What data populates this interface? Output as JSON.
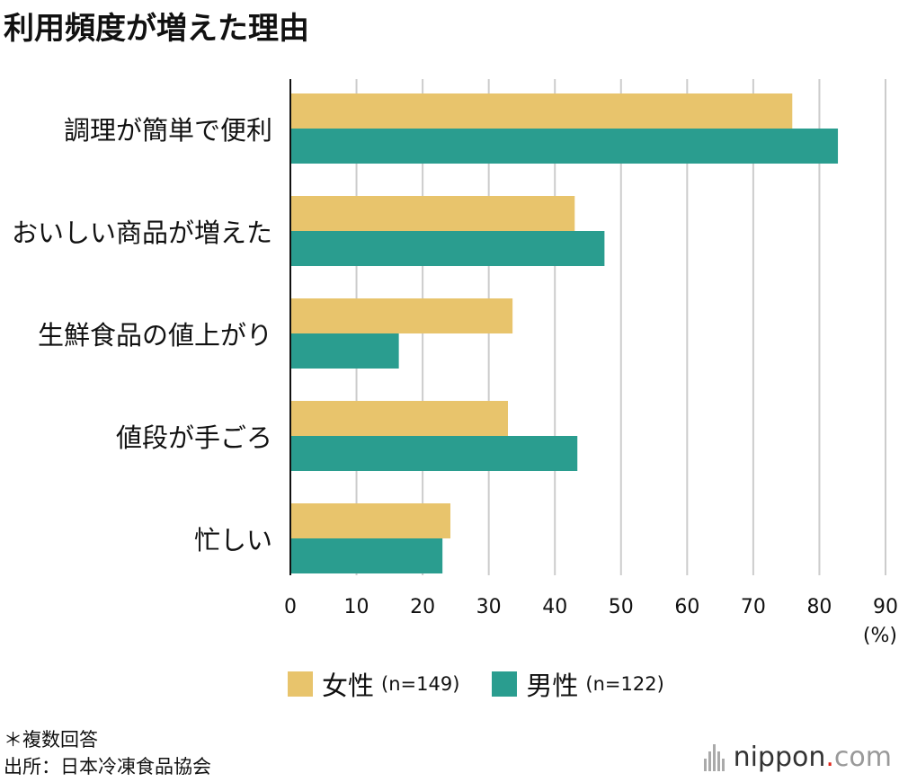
{
  "title": "利用頻度が増えた理由",
  "chart_data": {
    "type": "bar",
    "orientation": "horizontal",
    "title": "利用頻度が増えた理由",
    "categories": [
      "調理が簡単で便利",
      "おいしい商品が増えた",
      "生鮮食品の値上がり",
      "値段が手ごろ",
      "忙しい"
    ],
    "series": [
      {
        "name": "女性",
        "n_label": "(n=149)",
        "color": "#e8c46c",
        "values": [
          75.9,
          43.0,
          33.6,
          32.9,
          24.2
        ]
      },
      {
        "name": "男性",
        "n_label": "(n=122)",
        "color": "#2a9d8f",
        "values": [
          82.8,
          47.5,
          16.4,
          43.4,
          23.0
        ]
      }
    ],
    "xticks": [
      "0",
      "10",
      "20",
      "30",
      "40",
      "50",
      "60",
      "70",
      "80",
      "90"
    ],
    "xlim": [
      0,
      90
    ],
    "xunit": "(%)",
    "grid": true,
    "legend": "bottom"
  },
  "notes": {
    "line1": "＊複数回答",
    "line2": "出所：日本冷凍食品協会"
  },
  "logo": {
    "name": "nippon",
    "dot": ".",
    "suffix": "com"
  }
}
